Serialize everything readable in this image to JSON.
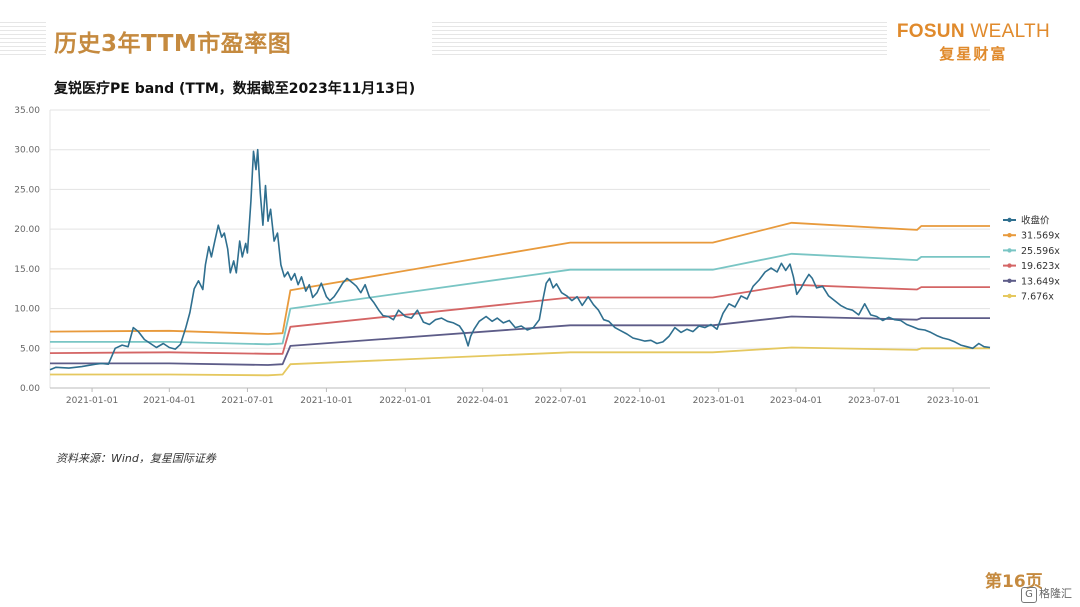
{
  "header": {
    "title": "历史3年TTM市盈率图",
    "logo_en_bold": "FOSUN",
    "logo_en_thin": " WEALTH",
    "logo_cn": "复星财富"
  },
  "chart_title": "复锐医疗PE band (TTM，数据截至2023年11月13日)",
  "source": "资料来源：Wind，复星国际证券",
  "page_number": "第16页",
  "watermark": "格隆汇",
  "colors": {
    "price": "#2f6f8f",
    "b31": "#e89a3c",
    "b25": "#79c5c4",
    "b19": "#d46565",
    "b13": "#5d5c88",
    "b7": "#e5c85f",
    "grid": "#e3e3e3"
  },
  "chart_data": {
    "type": "line",
    "ylim": [
      0,
      35
    ],
    "yticks": [
      "0.00",
      "5.00",
      "10.00",
      "15.00",
      "20.00",
      "25.00",
      "30.00",
      "35.00"
    ],
    "xlim": [
      "2020-11-13",
      "2023-11-13"
    ],
    "xticks": [
      "2021-01-01",
      "2021-04-01",
      "2021-07-01",
      "2021-10-01",
      "2022-01-01",
      "2022-04-01",
      "2022-07-01",
      "2022-10-01",
      "2023-01-01",
      "2023-04-01",
      "2023-07-01",
      "2023-10-01"
    ],
    "legend_position": "right",
    "series": [
      {
        "name": "收盘价",
        "key": "price",
        "points": [
          [
            "2020-11-13",
            2.3
          ],
          [
            "2020-11-20",
            2.6
          ],
          [
            "2020-12-05",
            2.5
          ],
          [
            "2020-12-20",
            2.7
          ],
          [
            "2021-01-05",
            3.0
          ],
          [
            "2021-01-12",
            3.1
          ],
          [
            "2021-01-20",
            3.0
          ],
          [
            "2021-01-28",
            5.0
          ],
          [
            "2021-02-05",
            5.4
          ],
          [
            "2021-02-12",
            5.2
          ],
          [
            "2021-02-18",
            7.6
          ],
          [
            "2021-02-24",
            7.1
          ],
          [
            "2021-03-03",
            6.1
          ],
          [
            "2021-03-10",
            5.6
          ],
          [
            "2021-03-17",
            5.1
          ],
          [
            "2021-03-25",
            5.6
          ],
          [
            "2021-04-01",
            5.1
          ],
          [
            "2021-04-08",
            4.9
          ],
          [
            "2021-04-14",
            5.5
          ],
          [
            "2021-04-20",
            7.5
          ],
          [
            "2021-04-25",
            9.5
          ],
          [
            "2021-04-30",
            12.5
          ],
          [
            "2021-05-05",
            13.5
          ],
          [
            "2021-05-10",
            12.4
          ],
          [
            "2021-05-13",
            15.5
          ],
          [
            "2021-05-17",
            17.8
          ],
          [
            "2021-05-20",
            16.5
          ],
          [
            "2021-05-24",
            18.5
          ],
          [
            "2021-05-28",
            20.5
          ],
          [
            "2021-06-01",
            19.0
          ],
          [
            "2021-06-04",
            19.5
          ],
          [
            "2021-06-08",
            17.5
          ],
          [
            "2021-06-11",
            14.5
          ],
          [
            "2021-06-15",
            16.0
          ],
          [
            "2021-06-18",
            14.5
          ],
          [
            "2021-06-22",
            18.5
          ],
          [
            "2021-06-25",
            16.5
          ],
          [
            "2021-06-29",
            18.2
          ],
          [
            "2021-07-01",
            17.0
          ],
          [
            "2021-07-05",
            23.5
          ],
          [
            "2021-07-08",
            29.8
          ],
          [
            "2021-07-11",
            27.5
          ],
          [
            "2021-07-13",
            30.0
          ],
          [
            "2021-07-16",
            24.5
          ],
          [
            "2021-07-19",
            20.5
          ],
          [
            "2021-07-22",
            25.5
          ],
          [
            "2021-07-25",
            21.0
          ],
          [
            "2021-07-28",
            22.5
          ],
          [
            "2021-08-01",
            18.5
          ],
          [
            "2021-08-05",
            19.5
          ],
          [
            "2021-08-09",
            15.5
          ],
          [
            "2021-08-13",
            14.0
          ],
          [
            "2021-08-17",
            14.6
          ],
          [
            "2021-08-21",
            13.6
          ],
          [
            "2021-08-25",
            14.4
          ],
          [
            "2021-08-29",
            13.0
          ],
          [
            "2021-09-02",
            14.0
          ],
          [
            "2021-09-07",
            12.2
          ],
          [
            "2021-09-11",
            13.0
          ],
          [
            "2021-09-15",
            11.4
          ],
          [
            "2021-09-20",
            12.0
          ],
          [
            "2021-09-25",
            13.2
          ],
          [
            "2021-10-01",
            11.5
          ],
          [
            "2021-10-05",
            11.0
          ],
          [
            "2021-10-10",
            11.5
          ],
          [
            "2021-10-15",
            12.3
          ],
          [
            "2021-10-20",
            13.2
          ],
          [
            "2021-10-25",
            13.8
          ],
          [
            "2021-11-01",
            13.2
          ],
          [
            "2021-11-05",
            12.8
          ],
          [
            "2021-11-10",
            12.0
          ],
          [
            "2021-11-15",
            13.0
          ],
          [
            "2021-11-20",
            11.5
          ],
          [
            "2021-11-25",
            10.8
          ],
          [
            "2021-12-01",
            9.8
          ],
          [
            "2021-12-06",
            9.1
          ],
          [
            "2021-12-12",
            9.0
          ],
          [
            "2021-12-18",
            8.6
          ],
          [
            "2021-12-24",
            9.8
          ],
          [
            "2022-01-01",
            9.0
          ],
          [
            "2022-01-08",
            8.8
          ],
          [
            "2022-01-15",
            9.8
          ],
          [
            "2022-01-22",
            8.3
          ],
          [
            "2022-01-29",
            8.0
          ],
          [
            "2022-02-05",
            8.6
          ],
          [
            "2022-02-12",
            8.8
          ],
          [
            "2022-02-19",
            8.4
          ],
          [
            "2022-02-26",
            8.2
          ],
          [
            "2022-03-05",
            7.8
          ],
          [
            "2022-03-10",
            7.0
          ],
          [
            "2022-03-15",
            5.3
          ],
          [
            "2022-03-18",
            6.5
          ],
          [
            "2022-03-22",
            7.4
          ],
          [
            "2022-03-28",
            8.4
          ],
          [
            "2022-04-05",
            9.0
          ],
          [
            "2022-04-12",
            8.4
          ],
          [
            "2022-04-18",
            8.8
          ],
          [
            "2022-04-25",
            8.2
          ],
          [
            "2022-05-02",
            8.5
          ],
          [
            "2022-05-09",
            7.6
          ],
          [
            "2022-05-16",
            7.8
          ],
          [
            "2022-05-23",
            7.3
          ],
          [
            "2022-05-30",
            7.6
          ],
          [
            "2022-06-06",
            8.6
          ],
          [
            "2022-06-10",
            11.0
          ],
          [
            "2022-06-14",
            13.2
          ],
          [
            "2022-06-18",
            13.8
          ],
          [
            "2022-06-22",
            12.6
          ],
          [
            "2022-06-26",
            13.1
          ],
          [
            "2022-07-02",
            12.0
          ],
          [
            "2022-07-08",
            11.6
          ],
          [
            "2022-07-14",
            11.0
          ],
          [
            "2022-07-20",
            11.5
          ],
          [
            "2022-07-26",
            10.4
          ],
          [
            "2022-08-02",
            11.5
          ],
          [
            "2022-08-08",
            10.5
          ],
          [
            "2022-08-14",
            9.8
          ],
          [
            "2022-08-20",
            8.6
          ],
          [
            "2022-08-26",
            8.4
          ],
          [
            "2022-09-02",
            7.6
          ],
          [
            "2022-09-09",
            7.2
          ],
          [
            "2022-09-16",
            6.8
          ],
          [
            "2022-09-23",
            6.3
          ],
          [
            "2022-09-30",
            6.1
          ],
          [
            "2022-10-07",
            5.9
          ],
          [
            "2022-10-14",
            6.0
          ],
          [
            "2022-10-21",
            5.6
          ],
          [
            "2022-10-28",
            5.8
          ],
          [
            "2022-11-04",
            6.5
          ],
          [
            "2022-11-11",
            7.6
          ],
          [
            "2022-11-18",
            7.0
          ],
          [
            "2022-11-25",
            7.4
          ],
          [
            "2022-12-02",
            7.1
          ],
          [
            "2022-12-09",
            7.8
          ],
          [
            "2022-12-16",
            7.6
          ],
          [
            "2022-12-23",
            8.0
          ],
          [
            "2022-12-30",
            7.4
          ],
          [
            "2023-01-06",
            9.4
          ],
          [
            "2023-01-13",
            10.6
          ],
          [
            "2023-01-20",
            10.2
          ],
          [
            "2023-01-27",
            11.6
          ],
          [
            "2023-02-03",
            11.2
          ],
          [
            "2023-02-10",
            12.8
          ],
          [
            "2023-02-17",
            13.6
          ],
          [
            "2023-02-24",
            14.6
          ],
          [
            "2023-03-03",
            15.1
          ],
          [
            "2023-03-10",
            14.6
          ],
          [
            "2023-03-15",
            15.7
          ],
          [
            "2023-03-20",
            14.8
          ],
          [
            "2023-03-25",
            15.6
          ],
          [
            "2023-03-29",
            14.0
          ],
          [
            "2023-04-02",
            11.8
          ],
          [
            "2023-04-07",
            12.6
          ],
          [
            "2023-04-12",
            13.6
          ],
          [
            "2023-04-16",
            14.3
          ],
          [
            "2023-04-20",
            13.8
          ],
          [
            "2023-04-25",
            12.6
          ],
          [
            "2023-05-02",
            12.8
          ],
          [
            "2023-05-09",
            11.6
          ],
          [
            "2023-05-16",
            11.0
          ],
          [
            "2023-05-23",
            10.4
          ],
          [
            "2023-05-30",
            10.0
          ],
          [
            "2023-06-06",
            9.8
          ],
          [
            "2023-06-13",
            9.2
          ],
          [
            "2023-06-20",
            10.6
          ],
          [
            "2023-06-27",
            9.2
          ],
          [
            "2023-07-04",
            9.0
          ],
          [
            "2023-07-11",
            8.5
          ],
          [
            "2023-07-18",
            8.9
          ],
          [
            "2023-07-25",
            8.6
          ],
          [
            "2023-08-01",
            8.5
          ],
          [
            "2023-08-08",
            8.0
          ],
          [
            "2023-08-15",
            7.7
          ],
          [
            "2023-08-22",
            7.4
          ],
          [
            "2023-08-29",
            7.3
          ],
          [
            "2023-09-05",
            7.0
          ],
          [
            "2023-09-12",
            6.6
          ],
          [
            "2023-09-19",
            6.3
          ],
          [
            "2023-09-26",
            6.1
          ],
          [
            "2023-10-03",
            5.8
          ],
          [
            "2023-10-10",
            5.4
          ],
          [
            "2023-10-17",
            5.2
          ],
          [
            "2023-10-24",
            5.0
          ],
          [
            "2023-10-31",
            5.6
          ],
          [
            "2023-11-06",
            5.2
          ],
          [
            "2023-11-13",
            5.1
          ]
        ]
      },
      {
        "name": "31.569x",
        "key": "b31",
        "points": [
          [
            "2020-11-13",
            7.1
          ],
          [
            "2021-04-01",
            7.2
          ],
          [
            "2021-07-25",
            6.8
          ],
          [
            "2021-08-11",
            6.9
          ],
          [
            "2021-08-20",
            12.3
          ],
          [
            "2022-07-12",
            18.3
          ],
          [
            "2022-12-25",
            18.3
          ],
          [
            "2023-03-27",
            20.8
          ],
          [
            "2023-08-20",
            19.9
          ],
          [
            "2023-08-25",
            20.4
          ],
          [
            "2023-11-13",
            20.4
          ]
        ]
      },
      {
        "name": "25.596x",
        "key": "b25",
        "points": [
          [
            "2020-11-13",
            5.8
          ],
          [
            "2021-04-01",
            5.8
          ],
          [
            "2021-07-25",
            5.5
          ],
          [
            "2021-08-11",
            5.6
          ],
          [
            "2021-08-20",
            10.0
          ],
          [
            "2022-07-12",
            14.9
          ],
          [
            "2022-12-25",
            14.9
          ],
          [
            "2023-03-27",
            16.9
          ],
          [
            "2023-08-20",
            16.1
          ],
          [
            "2023-08-25",
            16.5
          ],
          [
            "2023-11-13",
            16.5
          ]
        ]
      },
      {
        "name": "19.623x",
        "key": "b19",
        "points": [
          [
            "2020-11-13",
            4.4
          ],
          [
            "2021-04-01",
            4.5
          ],
          [
            "2021-07-25",
            4.3
          ],
          [
            "2021-08-11",
            4.3
          ],
          [
            "2021-08-20",
            7.7
          ],
          [
            "2022-07-12",
            11.4
          ],
          [
            "2022-12-25",
            11.4
          ],
          [
            "2023-03-27",
            13.0
          ],
          [
            "2023-08-20",
            12.4
          ],
          [
            "2023-08-25",
            12.7
          ],
          [
            "2023-11-13",
            12.7
          ]
        ]
      },
      {
        "name": "13.649x",
        "key": "b13",
        "points": [
          [
            "2020-11-13",
            3.1
          ],
          [
            "2021-04-01",
            3.1
          ],
          [
            "2021-07-25",
            2.9
          ],
          [
            "2021-08-11",
            3.0
          ],
          [
            "2021-08-20",
            5.3
          ],
          [
            "2022-07-12",
            7.9
          ],
          [
            "2022-12-25",
            7.9
          ],
          [
            "2023-03-27",
            9.0
          ],
          [
            "2023-08-20",
            8.6
          ],
          [
            "2023-08-25",
            8.8
          ],
          [
            "2023-11-13",
            8.8
          ]
        ]
      },
      {
        "name": "7.676x",
        "key": "b7",
        "points": [
          [
            "2020-11-13",
            1.7
          ],
          [
            "2021-04-01",
            1.7
          ],
          [
            "2021-07-25",
            1.6
          ],
          [
            "2021-08-11",
            1.7
          ],
          [
            "2021-08-20",
            3.0
          ],
          [
            "2022-07-12",
            4.5
          ],
          [
            "2022-12-25",
            4.5
          ],
          [
            "2023-03-27",
            5.1
          ],
          [
            "2023-08-20",
            4.8
          ],
          [
            "2023-08-25",
            5.0
          ],
          [
            "2023-11-13",
            5.0
          ]
        ]
      }
    ]
  }
}
